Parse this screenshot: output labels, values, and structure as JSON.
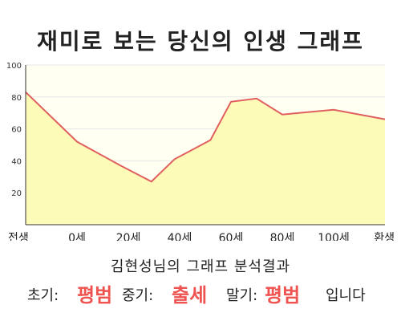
{
  "chart_data": {
    "type": "area",
    "title": "재미로 보는 당신의 인생 그래프",
    "x": [
      "전생",
      "0세",
      "20세",
      "40세",
      "60세",
      "80세",
      "100세",
      "환생"
    ],
    "points": [
      {
        "age": -20,
        "value": 83
      },
      {
        "age": 0,
        "value": 52
      },
      {
        "age": 17,
        "value": 37
      },
      {
        "age": 29,
        "value": 27
      },
      {
        "age": 38,
        "value": 41
      },
      {
        "age": 52,
        "value": 53
      },
      {
        "age": 60,
        "value": 77
      },
      {
        "age": 70,
        "value": 79
      },
      {
        "age": 80,
        "value": 69
      },
      {
        "age": 100,
        "value": 72
      },
      {
        "age": 120,
        "value": 66
      }
    ],
    "y_ticks": [
      "20",
      "40",
      "60",
      "80",
      "100"
    ],
    "ylim": [
      0,
      100
    ],
    "xlim": [
      -20,
      120
    ],
    "grid": true,
    "colors": {
      "line": "#e06060",
      "fill": "#fdfbb8",
      "plot_bg": "#fffff2",
      "grid": "#e6e6e6"
    }
  },
  "caption": {
    "subtitle": "김현성님의 그래프 분석결과",
    "early_label": "초기:",
    "early_value": "평범",
    "middle_label": "중기:",
    "middle_value": "출세",
    "late_label": "말기:",
    "late_value": "평범",
    "ending": "입니다"
  }
}
